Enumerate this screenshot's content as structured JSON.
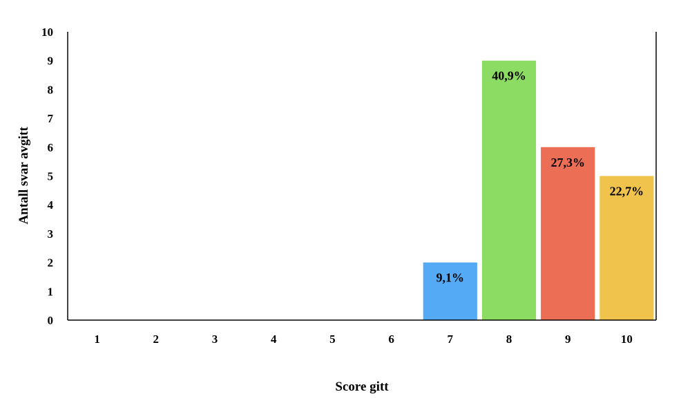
{
  "chart_data": {
    "type": "bar",
    "title": "",
    "xlabel": "Score gitt",
    "ylabel": "Antall svar avgitt",
    "categories": [
      "1",
      "2",
      "3",
      "4",
      "5",
      "6",
      "7",
      "8",
      "9",
      "10"
    ],
    "values": [
      0,
      0,
      0,
      0,
      0,
      0,
      2,
      9,
      6,
      5
    ],
    "data_labels": [
      "",
      "",
      "",
      "",
      "",
      "",
      "9,1%",
      "40,9%",
      "27,3%",
      "22,7%"
    ],
    "bar_colors": [
      "#55aaf5",
      "#55aaf5",
      "#55aaf5",
      "#55aaf5",
      "#55aaf5",
      "#55aaf5",
      "#55aaf5",
      "#8cdb62",
      "#eb6e55",
      "#f0c44c"
    ],
    "ylim": [
      0,
      10
    ],
    "yticks": [
      "0",
      "1",
      "2",
      "3",
      "4",
      "5",
      "6",
      "7",
      "8",
      "9",
      "10"
    ],
    "grid": false,
    "legend": "none"
  }
}
